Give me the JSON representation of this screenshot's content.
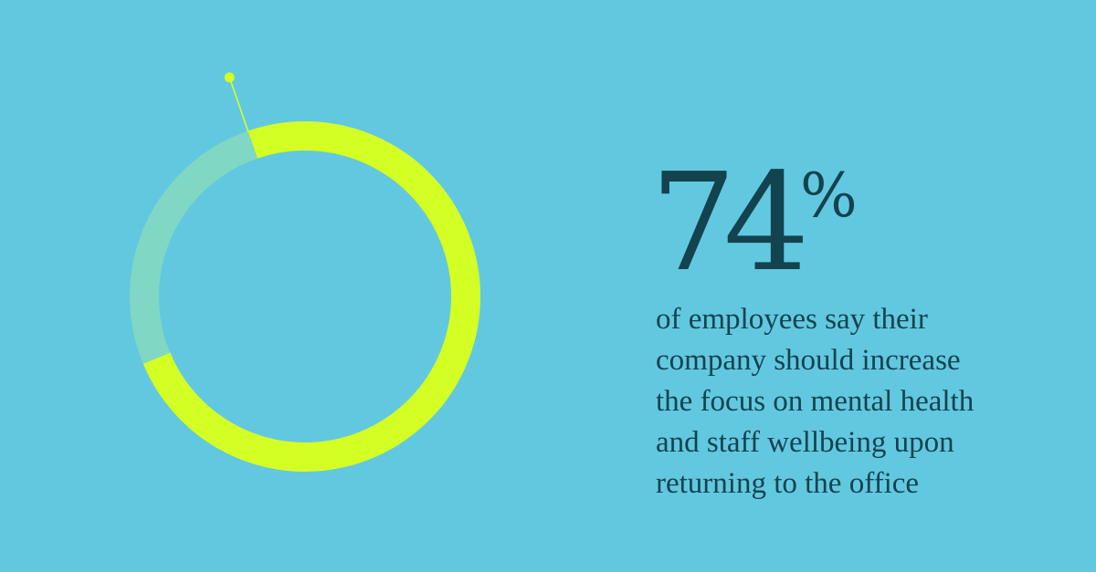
{
  "colors": {
    "background": "#62C8E0",
    "highlight_arc": "#D4FF24",
    "remainder_arc": "#7FD7C4",
    "text": "#12434F"
  },
  "chart_data": {
    "type": "pie",
    "variant": "donut",
    "value": 74,
    "unit": "%",
    "slices": [
      {
        "value": 74,
        "color": "#D4FF24"
      },
      {
        "value": 26,
        "color": "#7FD7C4"
      }
    ],
    "title": "",
    "legend": "none"
  },
  "stat": {
    "number": "74",
    "unit": "%",
    "caption_lines": [
      "of employees say their",
      "company should increase",
      "the focus on mental health",
      "and staff wellbeing upon",
      "returning to the office"
    ]
  }
}
